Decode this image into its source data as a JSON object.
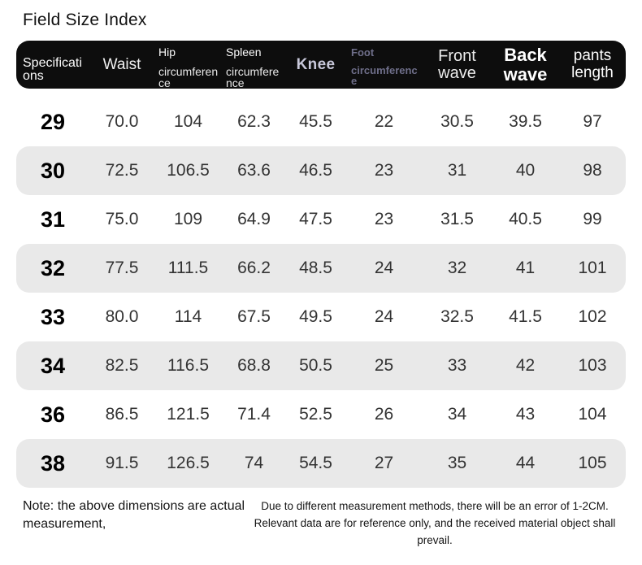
{
  "page": {
    "title": "Field Size Index"
  },
  "table": {
    "columns": [
      {
        "id": "specifications",
        "label": "Specifications"
      },
      {
        "id": "waist",
        "label": "Waist"
      },
      {
        "id": "hip-circumference",
        "label": "Hip",
        "sub": "circumference"
      },
      {
        "id": "spleen-circumference",
        "label": "Spleen",
        "sub": "circumference"
      },
      {
        "id": "knee",
        "label": "Knee"
      },
      {
        "id": "foot-circumference",
        "label": "Foot",
        "sub": "circumference"
      },
      {
        "id": "front-wave",
        "label": "Front wave"
      },
      {
        "id": "back-wave",
        "label": "Back wave"
      },
      {
        "id": "pants-length",
        "label": "pants length"
      }
    ],
    "rows": [
      [
        "29",
        "70.0",
        "104",
        "62.3",
        "45.5",
        "22",
        "30.5",
        "39.5",
        "97"
      ],
      [
        "30",
        "72.5",
        "106.5",
        "63.6",
        "46.5",
        "23",
        "31",
        "40",
        "98"
      ],
      [
        "31",
        "75.0",
        "109",
        "64.9",
        "47.5",
        "23",
        "31.5",
        "40.5",
        "99"
      ],
      [
        "32",
        "77.5",
        "111.5",
        "66.2",
        "48.5",
        "24",
        "32",
        "41",
        "101"
      ],
      [
        "33",
        "80.0",
        "114",
        "67.5",
        "49.5",
        "24",
        "32.5",
        "41.5",
        "102"
      ],
      [
        "34",
        "82.5",
        "116.5",
        "68.8",
        "50.5",
        "25",
        "33",
        "42",
        "103"
      ],
      [
        "36",
        "86.5",
        "121.5",
        "71.4",
        "52.5",
        "26",
        "34",
        "43",
        "104"
      ],
      [
        "38",
        "91.5",
        "126.5",
        "74",
        "54.5",
        "27",
        "35",
        "44",
        "105"
      ]
    ]
  },
  "footer": {
    "note_left": "Note: the above dimensions are actual measurement,",
    "note_right": "Due to different measurement methods, there will be an error of 1-2CM. Relevant data are for reference only, and the received material object shall prevail."
  },
  "colors": {
    "header_bg": "#0d0d0d",
    "header_text": "#ffffff",
    "knee_text": "#c8c8da",
    "foot_text": "#6e6e89",
    "stripe_bg": "#e9e9e9",
    "value_text": "#333333",
    "size_text": "#000000"
  }
}
